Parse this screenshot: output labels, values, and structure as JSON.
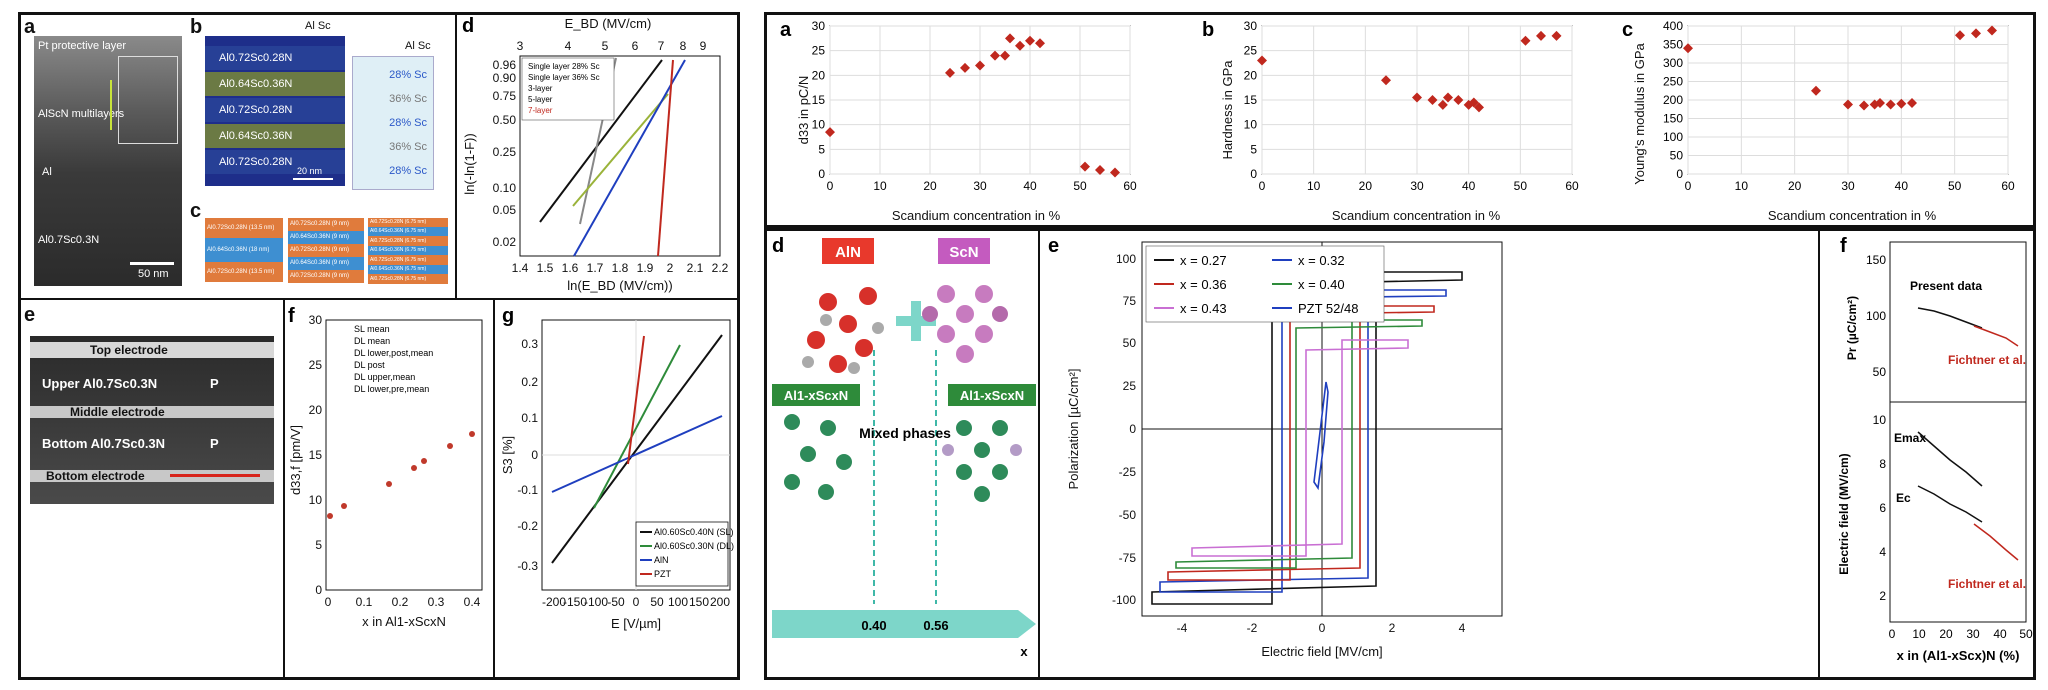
{
  "left": {
    "a": {
      "label": "a",
      "texts": [
        "Pt protective layer",
        "AlScN multilayers",
        "Al",
        "Al0.7Sc0.3N"
      ],
      "scalebar": "50 nm"
    },
    "b": {
      "label": "b",
      "legend_left": "Al  Sc",
      "legend_right": "Al  Sc",
      "layers": [
        "Al0.72Sc0.28N",
        "Al0.64Sc0.36N",
        "Al0.72Sc0.28N",
        "Al0.64Sc0.36N",
        "Al0.72Sc0.28N"
      ],
      "conc": [
        "28% Sc",
        "36% Sc",
        "28% Sc",
        "36% Sc",
        "28% Sc"
      ],
      "scalebar": "20 nm"
    },
    "c": {
      "label": "c",
      "col1": [
        "Al0.72Sc0.28N (13.5 nm)",
        "Al0.64Sc0.36N (18 nm)",
        "Al0.72Sc0.28N (13.5 nm)"
      ],
      "col2": [
        "Al0.72Sc0.28N (9 nm)",
        "Al0.64Sc0.36N (9 nm)",
        "Al0.72Sc0.28N (9 nm)",
        "Al0.64Sc0.36N (9 nm)",
        "Al0.72Sc0.28N (9 nm)"
      ],
      "col3": [
        "Al0.72Sc0.28N (6.75 nm)",
        "Al0.64Sc0.36N (6.75 nm)",
        "Al0.72Sc0.28N (6.75 nm)",
        "Al0.64Sc0.36N (6.75 nm)",
        "Al0.72Sc0.28N (6.75 nm)",
        "Al0.64Sc0.36N (6.75 nm)",
        "Al0.72Sc0.28N (6.75 nm)"
      ]
    },
    "d": {
      "label": "d",
      "top_axis": "E_BD (MV/cm)",
      "top_ticks": [
        "3",
        "4",
        "5",
        "6",
        "7",
        "8",
        "9"
      ],
      "bottom_axis": "ln(E_BD (MV/cm))",
      "bottom_ticks": [
        "1.4",
        "1.5",
        "1.6",
        "1.7",
        "1.8",
        "1.9",
        "2",
        "2.1",
        "2.2"
      ],
      "left_axis": "ln(-ln(1-F))",
      "left_ticks": [
        "0.96",
        "0.90",
        "0.75",
        "0.50",
        "0.25",
        "0.10",
        "0.05",
        "0.02"
      ],
      "legend": [
        "Single layer 28% Sc",
        "Single layer 36% Sc",
        "3-layer",
        "5-layer",
        "7-layer"
      ]
    },
    "e": {
      "label": "e",
      "layers": [
        "Top electrode",
        "Upper Al0.7Sc0.3N",
        "Middle electrode",
        "Bottom Al0.7Sc0.3N",
        "Bottom electrode"
      ],
      "p": "P"
    },
    "f": {
      "label": "f",
      "ylabel": "d33,f [pm/V]",
      "xlabel": "x in Al1-xScxN",
      "legend": [
        "SL mean",
        "DL mean",
        "DL lower,post,mean",
        "DL post",
        "DL upper,mean",
        "DL lower,pre,mean"
      ],
      "xticks": [
        "0",
        "0.1",
        "0.2",
        "0.3",
        "0.4"
      ],
      "yticks": [
        "0",
        "5",
        "10",
        "15",
        "20",
        "25",
        "30"
      ]
    },
    "g": {
      "label": "g",
      "ylabel": "S3 [%]",
      "xlabel": "E [V/µm]",
      "xticks": [
        "-200",
        "-150",
        "-100",
        "-50",
        "0",
        "50",
        "100",
        "150",
        "200"
      ],
      "yticks": [
        "-0.3",
        "-0.2",
        "-0.1",
        "0",
        "0.1",
        "0.2",
        "0.3"
      ],
      "legend": [
        "Al0.60Sc0.40N (SL)",
        "Al0.60Sc0.30N (DL)",
        "AlN",
        "PZT"
      ]
    }
  },
  "right": {
    "a": {
      "label": "a",
      "ylabel": "d33 in pC/N",
      "xlabel": "Scandium concentration in %",
      "xticks": [
        "0",
        "10",
        "20",
        "30",
        "40",
        "50",
        "60"
      ],
      "yticks": [
        "0",
        "5",
        "10",
        "15",
        "20",
        "25",
        "30"
      ]
    },
    "b": {
      "label": "b",
      "ylabel": "Hardness in GPa",
      "xlabel": "Scandium concentration in %",
      "xticks": [
        "0",
        "10",
        "20",
        "30",
        "40",
        "50",
        "60"
      ],
      "yticks": [
        "0",
        "5",
        "10",
        "15",
        "20",
        "25",
        "30"
      ]
    },
    "c": {
      "label": "c",
      "ylabel": "Young's modulus in GPa",
      "xlabel": "Scandium concentration in %",
      "xticks": [
        "0",
        "10",
        "20",
        "30",
        "40",
        "50",
        "60"
      ],
      "yticks": [
        "0",
        "50",
        "100",
        "150",
        "200",
        "250",
        "300",
        "350",
        "400"
      ]
    },
    "d": {
      "label": "d",
      "aln": "AlN",
      "scn": "ScN",
      "alsc_left": "Al1-xScxN",
      "alsc_right": "Al1-xScxN",
      "mixed": "Mixed phases",
      "v1": "0.40",
      "v2": "0.56",
      "x": "x"
    },
    "e": {
      "label": "e",
      "ylabel": "Polarization [µC/cm²]",
      "xlabel": "Electric field [MV/cm]",
      "xticks": [
        "-4",
        "-2",
        "0",
        "2",
        "4"
      ],
      "yticks": [
        "-100",
        "-75",
        "-50",
        "-25",
        "0",
        "25",
        "50",
        "75",
        "100"
      ],
      "legend": [
        "x = 0.27",
        "x = 0.32",
        "x = 0.36",
        "x = 0.40",
        "x = 0.43",
        "PZT 52/48"
      ]
    },
    "f": {
      "label": "f",
      "top_ylabel": "Pr (µC/cm²)",
      "top_yticks": [
        "150",
        "100",
        "50"
      ],
      "present": "Present data",
      "fichtner1": "Fichtner et al.",
      "bottom_ylabel": "Electric field (MV/cm)",
      "bottom_yticks": [
        "10",
        "8",
        "6",
        "4",
        "2"
      ],
      "emax": "Emax",
      "ec": "Ec",
      "fichtner2": "Fichtner et al.",
      "xlabel": "x in (Al1-xScx)N (%)",
      "xticks": [
        "0",
        "10",
        "20",
        "30",
        "40",
        "50"
      ]
    }
  },
  "chart_data": [
    {
      "type": "scatter",
      "title": "",
      "xlabel": "Scandium concentration in %",
      "ylabel": "d33 in pC/N",
      "xlim": [
        0,
        60
      ],
      "ylim": [
        0,
        30
      ],
      "series": [
        {
          "x": [
            0,
            24,
            27,
            30,
            33,
            35,
            36,
            38,
            40,
            42,
            51,
            54,
            57
          ],
          "y": [
            8.5,
            20.5,
            21.5,
            22,
            24,
            24,
            27.5,
            26,
            27,
            26.5,
            1.5,
            0.8,
            0.3
          ]
        }
      ]
    },
    {
      "type": "scatter",
      "title": "",
      "xlabel": "Scandium concentration in %",
      "ylabel": "Hardness in GPa",
      "xlim": [
        0,
        60
      ],
      "ylim": [
        0,
        30
      ],
      "series": [
        {
          "x": [
            0,
            24,
            30,
            33,
            35,
            36,
            38,
            40,
            41,
            42,
            51,
            54,
            57
          ],
          "y": [
            23,
            19,
            15.5,
            15,
            14,
            15.5,
            15,
            14,
            14.5,
            13.5,
            27,
            28,
            28
          ]
        }
      ]
    },
    {
      "type": "scatter",
      "title": "",
      "xlabel": "Scandium concentration in %",
      "ylabel": "Young's modulus in GPa",
      "xlim": [
        0,
        60
      ],
      "ylim": [
        0,
        400
      ],
      "series": [
        {
          "x": [
            0,
            24,
            30,
            33,
            35,
            36,
            38,
            40,
            42,
            51,
            54,
            57
          ],
          "y": [
            340,
            225,
            188,
            185,
            188,
            192,
            188,
            190,
            192,
            375,
            380,
            388
          ]
        }
      ]
    }
  ]
}
